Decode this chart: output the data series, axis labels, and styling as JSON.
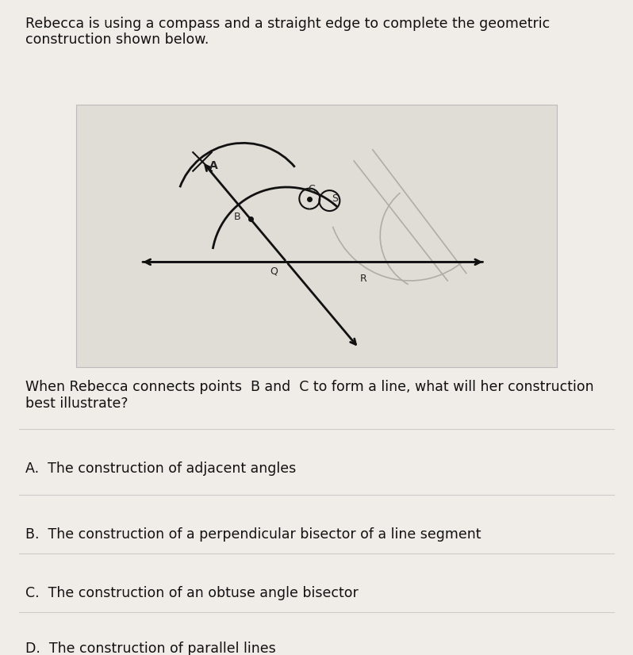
{
  "bg_color": "#f0ede8",
  "diagram_bg": "#dedad4",
  "title_text": "Rebecca is using a compass and a straight edge to complete the geometric\nconstruction shown below.",
  "question_text": "When Rebecca connects points  B and  C to form a line, what will her construction\nbest illustrate?",
  "options": [
    "A.  The construction of adjacent angles",
    "B.  The construction of a perpendicular bisector of a line segment",
    "C.  The construction of an obtuse angle bisector",
    "D.  The construction of parallel lines"
  ],
  "font_size_title": 12.5,
  "font_size_question": 12.5,
  "font_size_options": 12.5,
  "line_color": "#111111",
  "label_color": "#222222"
}
